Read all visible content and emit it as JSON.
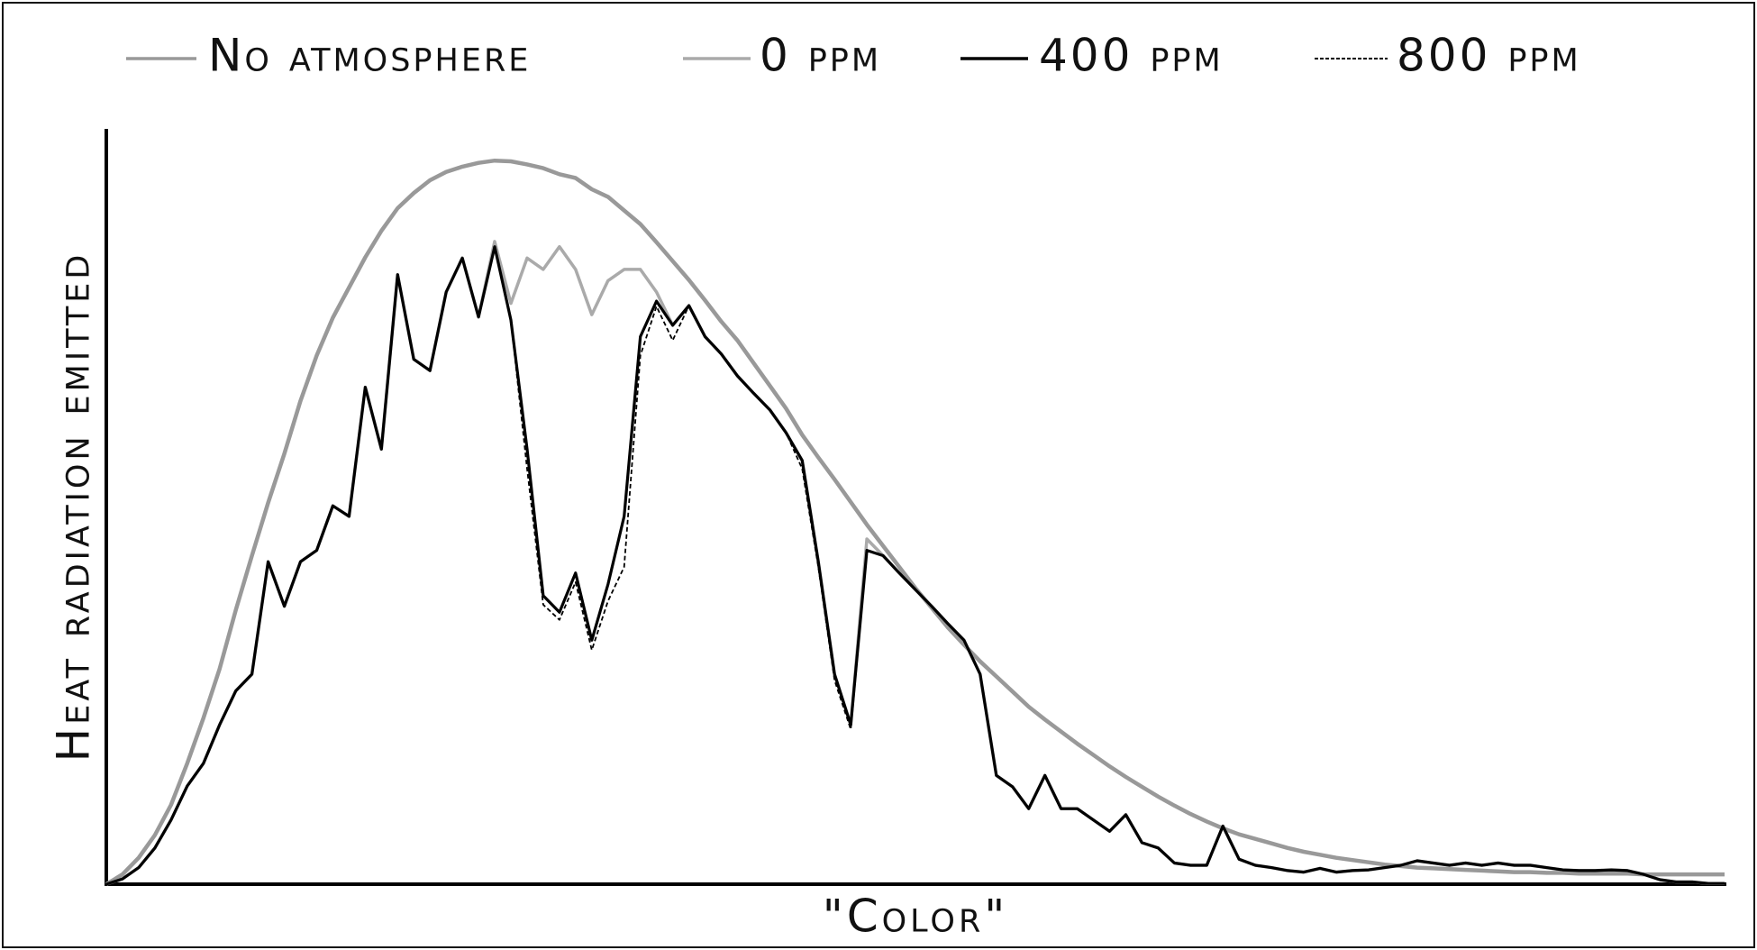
{
  "chart_data": {
    "type": "line",
    "x_label": "\"Color\"",
    "y_label": "Heat radiation emitted",
    "xlim": [
      0,
      100
    ],
    "ylim": [
      0,
      100
    ],
    "legend": "top",
    "x": [
      0,
      1,
      2,
      3,
      4,
      5,
      6,
      7,
      8,
      9,
      10,
      11,
      12,
      13,
      14,
      15,
      16,
      17,
      18,
      19,
      20,
      21,
      22,
      23,
      24,
      25,
      26,
      27,
      28,
      29,
      30,
      31,
      32,
      33,
      34,
      35,
      36,
      37,
      38,
      39,
      40,
      41,
      42,
      43,
      44,
      45,
      46,
      47,
      48,
      49,
      50,
      51,
      52,
      53,
      54,
      55,
      56,
      57,
      58,
      59,
      60,
      61,
      62,
      63,
      64,
      65,
      66,
      67,
      68,
      69,
      70,
      71,
      72,
      73,
      74,
      75,
      76,
      77,
      78,
      79,
      80,
      81,
      82,
      83,
      84,
      85,
      86,
      87,
      88,
      89,
      90,
      91,
      92,
      93,
      94,
      95,
      96,
      97,
      98,
      99,
      100
    ],
    "series": [
      {
        "name": "No atmosphere",
        "color": "#999999",
        "dash": false,
        "values": [
          0,
          1.3,
          3.5,
          6.5,
          10.5,
          16,
          22,
          28.5,
          36.3,
          43.5,
          50.5,
          57,
          64,
          70,
          75,
          79,
          83,
          86.5,
          89.5,
          91.5,
          93.2,
          94.3,
          95,
          95.5,
          95.8,
          95.7,
          95.3,
          94.8,
          94,
          93.5,
          92,
          91,
          89.2,
          87.4,
          85,
          82.5,
          80,
          77.3,
          74.5,
          72,
          69,
          66,
          63,
          59.5,
          56.5,
          53.6,
          50.6,
          47.6,
          44.8,
          42,
          39.2,
          36.6,
          34,
          31.7,
          29.5,
          27.5,
          25.5,
          23.5,
          21.8,
          20.2,
          18.6,
          17.1,
          15.6,
          14.2,
          12.9,
          11.6,
          10.4,
          9.3,
          8.3,
          7.4,
          6.6,
          6,
          5.4,
          4.8,
          4.3,
          3.9,
          3.5,
          3.2,
          2.9,
          2.6,
          2.4,
          2.2,
          2.1,
          2,
          1.9,
          1.8,
          1.7,
          1.6,
          1.6,
          1.5,
          1.5,
          1.4,
          1.4,
          1.4,
          1.4,
          1.3,
          1.3,
          1.3,
          1.3,
          1.3,
          1.3
        ]
      },
      {
        "name": "0 ppm",
        "color": "#aaaaaa",
        "dash": false,
        "values": [
          0,
          0.7,
          2.2,
          4.8,
          8.5,
          13,
          16,
          21.1,
          25.6,
          27.8,
          42.7,
          36.8,
          42.7,
          44.2,
          50.1,
          48.7,
          65.8,
          57.6,
          80.7,
          69.5,
          68,
          78.4,
          82.9,
          75.1,
          85.1,
          76.9,
          82.9,
          81.4,
          84.4,
          81.4,
          75.4,
          79.9,
          81.4,
          81.4,
          78.4,
          74,
          76.6,
          72.5,
          70.2,
          67.3,
          65,
          62.8,
          59.8,
          56.1,
          42.7,
          27.8,
          21.1,
          45.7,
          43.5,
          41.2,
          39,
          36.8,
          34.5,
          32.3,
          27.8,
          14.4,
          12.9,
          10,
          14.4,
          10,
          10,
          8.5,
          7,
          9.2,
          5.5,
          4.8,
          2.8,
          2.5,
          2.5,
          7.7,
          3.3,
          2.5,
          2.2,
          1.8,
          1.6,
          2.1,
          1.6,
          1.8,
          1.9,
          2.2,
          2.5,
          3.1,
          2.8,
          2.5,
          2.8,
          2.5,
          2.8,
          2.5,
          2.5,
          2.2,
          1.9,
          1.8,
          1.8,
          1.9,
          1.8,
          1.3,
          0.6,
          0.3,
          0.3,
          0.1,
          0.1
        ]
      },
      {
        "name": "400 ppm",
        "color": "#000000",
        "dash": false,
        "values": [
          0,
          0.7,
          2.2,
          4.8,
          8.5,
          13,
          16,
          21.1,
          25.6,
          27.8,
          42.7,
          36.8,
          42.7,
          44.2,
          50.1,
          48.7,
          65.8,
          57.6,
          80.7,
          69.5,
          68,
          78.4,
          82.9,
          75.1,
          84.4,
          74.7,
          57.6,
          38.2,
          36,
          41.2,
          32.3,
          39.7,
          48.7,
          72.5,
          77.2,
          74,
          76.6,
          72.5,
          70.2,
          67.3,
          65,
          62.8,
          59.8,
          56.1,
          42.7,
          27.8,
          21.1,
          44.2,
          43.5,
          41.2,
          39,
          36.8,
          34.5,
          32.3,
          27.8,
          14.4,
          12.9,
          10,
          14.4,
          10,
          10,
          8.5,
          7,
          9.2,
          5.5,
          4.8,
          2.8,
          2.5,
          2.5,
          7.7,
          3.3,
          2.5,
          2.2,
          1.8,
          1.6,
          2.1,
          1.6,
          1.8,
          1.9,
          2.2,
          2.5,
          3.1,
          2.8,
          2.5,
          2.8,
          2.5,
          2.8,
          2.5,
          2.5,
          2.2,
          1.9,
          1.8,
          1.8,
          1.9,
          1.8,
          1.3,
          0.6,
          0.3,
          0.3,
          0.1,
          0.1
        ]
      },
      {
        "name": "800 ppm",
        "color": "#000000",
        "dash": true,
        "values": [
          0,
          0.7,
          2.2,
          4.8,
          8.5,
          13,
          16,
          21.1,
          25.6,
          27.8,
          42.7,
          36.8,
          42.7,
          44.2,
          50.1,
          48.7,
          65.8,
          57.6,
          80.7,
          69.5,
          68,
          78.4,
          82.9,
          75.1,
          84.4,
          74.7,
          55,
          37,
          35,
          40,
          31,
          37.5,
          42,
          70,
          76.5,
          72,
          76.6,
          72.5,
          70.2,
          67.3,
          65,
          62.8,
          59.8,
          55,
          42,
          27,
          20.5,
          44.2,
          43.5,
          41.2,
          39,
          36.8,
          34.5,
          32.3,
          27.8,
          14.4,
          12.9,
          10,
          14.4,
          10,
          10,
          8.5,
          7,
          9.2,
          5.5,
          4.8,
          2.8,
          2.5,
          2.5,
          7.7,
          3.3,
          2.5,
          2.2,
          1.8,
          1.6,
          2.1,
          1.6,
          1.8,
          1.9,
          2.2,
          2.5,
          3.1,
          2.8,
          2.5,
          2.8,
          2.5,
          2.8,
          2.5,
          2.5,
          2.2,
          1.9,
          1.8,
          1.8,
          1.9,
          1.8,
          1.3,
          0.6,
          0.3,
          0.3,
          0.1,
          0.1
        ]
      }
    ]
  }
}
